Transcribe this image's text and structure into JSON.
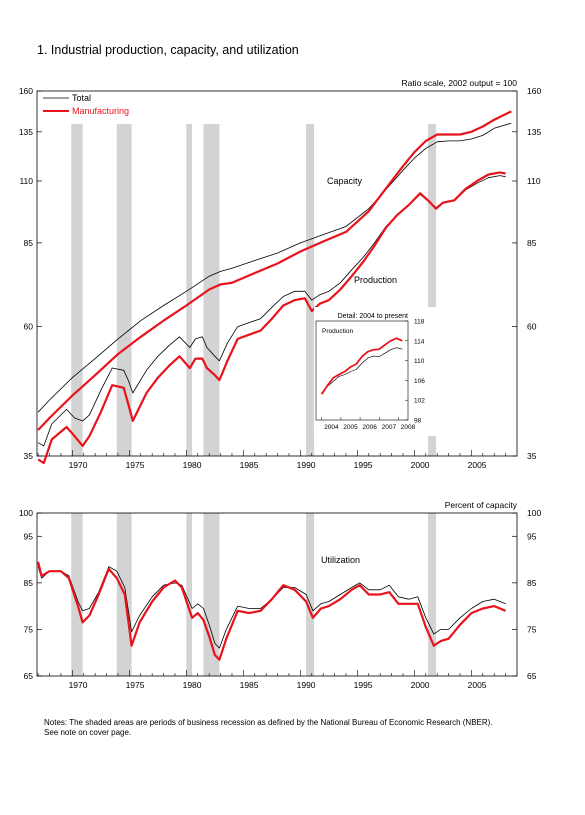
{
  "page": {
    "title": "1.  Industrial production, capacity, and utilization",
    "notes_line1": "Notes: The shaded areas are periods of business recession as defined by the National Bureau of Economic Research (NBER).",
    "notes_line2": "See note on cover page."
  },
  "colors": {
    "total": "#000000",
    "manufacturing": "#e8131b",
    "recession": "#d3d3d3"
  },
  "chart_data": [
    {
      "type": "line",
      "id": "capacity-production",
      "scale_note": "Ratio scale, 2002 output = 100",
      "yscale": "log",
      "ylim": [
        35,
        160
      ],
      "yticks": [
        35,
        60,
        85,
        110,
        135,
        160
      ],
      "xlim": [
        1966.9,
        2009.0
      ],
      "xticks": [
        1970,
        1975,
        1980,
        1985,
        1990,
        1995,
        2000,
        2005
      ],
      "grid": false,
      "legend_position": "top-left",
      "annotations": [
        "Capacity",
        "Production"
      ],
      "recessions": [
        [
          1969.9,
          1970.9
        ],
        [
          1973.9,
          1975.2
        ],
        [
          1980.0,
          1980.5
        ],
        [
          1981.5,
          1982.9
        ],
        [
          1990.5,
          1991.2
        ],
        [
          2001.2,
          2001.9
        ]
      ],
      "series": [
        {
          "name": "Total",
          "kind": "capacity",
          "x": [
            1967,
            1968,
            1970,
            1972,
            1974,
            1976,
            1978,
            1980,
            1982,
            1983,
            1984,
            1986,
            1988,
            1990,
            1992,
            1994,
            1996,
            1998,
            1999,
            2000,
            2001,
            2002,
            2003,
            2004,
            2005,
            2006,
            2007,
            2008.5
          ],
          "y": [
            42,
            44.2,
            48.5,
            52.5,
            57,
            61.5,
            65.5,
            69.5,
            74,
            75.5,
            76.5,
            79,
            81.5,
            85,
            88,
            91,
            98,
            109,
            115,
            121,
            126,
            129.5,
            130,
            130,
            131,
            133,
            137,
            140
          ]
        },
        {
          "name": "Manufacturing",
          "kind": "capacity",
          "x": [
            1967,
            1968,
            1970,
            1972,
            1974,
            1976,
            1978,
            1980,
            1982,
            1983,
            1984,
            1986,
            1988,
            1990,
            1992,
            1994,
            1996,
            1998,
            1999,
            2000,
            2001,
            2002,
            2003,
            2004,
            2005,
            2006,
            2007,
            2008.5
          ],
          "y": [
            39,
            41,
            45,
            49,
            53.5,
            57.5,
            61.5,
            65.5,
            70,
            71.5,
            72,
            75,
            78,
            82,
            85.5,
            89,
            97,
            110,
            117,
            124,
            130,
            133.5,
            133.5,
            133.5,
            135,
            138,
            142,
            147
          ]
        },
        {
          "name": "Total",
          "kind": "production",
          "x": [
            1967,
            1967.5,
            1968.2,
            1969.5,
            1970.2,
            1970.9,
            1971.5,
            1972.5,
            1973.5,
            1974.5,
            1974.9,
            1975.3,
            1976.5,
            1977.5,
            1978.5,
            1979.4,
            1980.3,
            1980.8,
            1981.4,
            1981.8,
            1982.5,
            1982.9,
            1983.6,
            1984.5,
            1985.5,
            1986.5,
            1987.5,
            1988.5,
            1989.5,
            1990.4,
            1991.0,
            1991.7,
            1992.5,
            1993.5,
            1994.5,
            1995.5,
            1996.5,
            1997.5,
            1998.5,
            1999.5,
            2000.5,
            2001.3,
            2001.9,
            2002.5,
            2003.5,
            2004.5,
            2005.5,
            2006.5,
            2007.5,
            2008.0
          ],
          "y": [
            37,
            36.5,
            40,
            42.5,
            41,
            40.5,
            41.5,
            46,
            50.5,
            50,
            48,
            45.5,
            50,
            53,
            55.5,
            57.5,
            55,
            57,
            57.5,
            55,
            53,
            52,
            56,
            60,
            61,
            62,
            65,
            68,
            69.5,
            69.5,
            67,
            68.5,
            69.5,
            72,
            76,
            80,
            85,
            91,
            95.5,
            99.5,
            104,
            101,
            98.5,
            100.5,
            101.5,
            106,
            109,
            111.5,
            112.5,
            112
          ]
        },
        {
          "name": "Manufacturing",
          "kind": "production",
          "x": [
            1967,
            1967.5,
            1968.2,
            1969.5,
            1970.2,
            1970.9,
            1971.5,
            1972.5,
            1973.5,
            1974.5,
            1974.9,
            1975.3,
            1976.5,
            1977.5,
            1978.5,
            1979.4,
            1980.3,
            1980.8,
            1981.4,
            1981.8,
            1982.5,
            1982.9,
            1983.6,
            1984.5,
            1985.5,
            1986.5,
            1987.5,
            1988.5,
            1989.5,
            1990.4,
            1991.0,
            1991.7,
            1992.5,
            1993.5,
            1994.5,
            1995.5,
            1996.5,
            1997.5,
            1998.5,
            1999.5,
            2000.5,
            2001.3,
            2001.9,
            2002.5,
            2003.5,
            2004.5,
            2005.5,
            2006.5,
            2007.5,
            2008.0
          ],
          "y": [
            34.5,
            34,
            37.5,
            39.5,
            38,
            36.5,
            38,
            42,
            47,
            46.5,
            43.5,
            40.5,
            45.5,
            48.5,
            51,
            53,
            50.5,
            52.5,
            52.5,
            50.5,
            49,
            48,
            52,
            57,
            58,
            59,
            62,
            65.5,
            67,
            67.5,
            64,
            66,
            67,
            70,
            74,
            78.5,
            84,
            90.5,
            95.5,
            99.5,
            104.5,
            101,
            98,
            100.5,
            101.5,
            106.5,
            110,
            113,
            114,
            113.5
          ]
        }
      ]
    },
    {
      "type": "line",
      "id": "detail-inset",
      "title": "Detail: 2004 to present",
      "label": "Production",
      "ylim": [
        98,
        118
      ],
      "yticks": [
        98,
        102,
        106,
        110,
        114,
        118
      ],
      "xticks": [
        2004,
        2005,
        2006,
        2007,
        2008
      ],
      "xlim": [
        2003.7,
        2008.5
      ],
      "series": [
        {
          "name": "Total",
          "x": [
            2004.0,
            2004.3,
            2004.6,
            2004.9,
            2005.2,
            2005.5,
            2005.8,
            2006.1,
            2006.4,
            2006.7,
            2007.0,
            2007.3,
            2007.6,
            2007.9,
            2008.2
          ],
          "y": [
            103.5,
            104.8,
            105.8,
            106.8,
            107.2,
            107.8,
            108.2,
            109.5,
            110.5,
            110.9,
            110.8,
            111.5,
            112.2,
            112.6,
            112.3
          ]
        },
        {
          "name": "Manufacturing",
          "x": [
            2004.0,
            2004.3,
            2004.6,
            2004.9,
            2005.2,
            2005.5,
            2005.8,
            2006.1,
            2006.4,
            2006.7,
            2007.0,
            2007.3,
            2007.6,
            2007.9,
            2008.2
          ],
          "y": [
            103.2,
            105.0,
            106.5,
            107.2,
            107.8,
            108.7,
            109.3,
            110.8,
            111.8,
            112.2,
            112.3,
            113.2,
            114.0,
            114.5,
            114.0
          ]
        }
      ]
    },
    {
      "type": "line",
      "id": "utilization",
      "scale_note": "Percent of capacity",
      "annotation": "Utilization",
      "ylim": [
        65,
        100
      ],
      "yticks": [
        65,
        75,
        85,
        95,
        100
      ],
      "xlim": [
        1966.9,
        2009.0
      ],
      "xticks": [
        1970,
        1975,
        1980,
        1985,
        1990,
        1995,
        2000,
        2005
      ],
      "recessions": [
        [
          1969.9,
          1970.9
        ],
        [
          1973.9,
          1975.2
        ],
        [
          1980.0,
          1980.5
        ],
        [
          1981.5,
          1982.9
        ],
        [
          1990.5,
          1991.2
        ],
        [
          2001.2,
          2001.9
        ]
      ],
      "series": [
        {
          "name": "Total",
          "x": [
            1967,
            1967.3,
            1968,
            1969,
            1969.7,
            1970.5,
            1970.9,
            1971.5,
            1972.3,
            1973.2,
            1973.9,
            1974.6,
            1975.2,
            1975.9,
            1977,
            1978,
            1979,
            1979.6,
            1980.5,
            1981.0,
            1981.5,
            1982.0,
            1982.5,
            1982.9,
            1983.5,
            1984.5,
            1985.5,
            1986.5,
            1987.5,
            1988.5,
            1989.5,
            1990.5,
            1991.1,
            1991.8,
            1992.5,
            1993.5,
            1994.5,
            1995.2,
            1996,
            1997,
            1997.8,
            1998.6,
            1999.5,
            2000.3,
            2001.0,
            2001.7,
            2002.3,
            2003,
            2004,
            2005,
            2006,
            2007,
            2008.0
          ],
          "y": [
            88.5,
            86,
            87.5,
            87.5,
            86.5,
            81,
            79,
            79.5,
            83,
            88.5,
            87.5,
            84,
            74.5,
            78,
            82,
            84.5,
            85,
            84.5,
            79.5,
            80.5,
            79.5,
            76,
            72,
            71,
            75,
            80,
            79.5,
            79.5,
            81.5,
            84,
            84,
            82.5,
            79,
            80.5,
            81,
            82.5,
            84,
            85,
            83.5,
            83.5,
            84.5,
            82,
            81.5,
            82,
            77.5,
            74,
            75,
            75,
            77.5,
            79.5,
            81,
            81.5,
            80.5
          ]
        },
        {
          "name": "Manufacturing",
          "x": [
            1967,
            1967.3,
            1968,
            1969,
            1969.7,
            1970.5,
            1970.9,
            1971.5,
            1972.3,
            1973.2,
            1973.9,
            1974.6,
            1975.2,
            1975.9,
            1977,
            1978,
            1979,
            1979.6,
            1980.5,
            1981.0,
            1981.5,
            1982.0,
            1982.5,
            1982.9,
            1983.5,
            1984.5,
            1985.5,
            1986.5,
            1987.5,
            1988.5,
            1989.5,
            1990.5,
            1991.1,
            1991.8,
            1992.5,
            1993.5,
            1994.5,
            1995.2,
            1996,
            1997,
            1997.8,
            1998.6,
            1999.5,
            2000.3,
            2001.0,
            2001.7,
            2002.3,
            2003,
            2004,
            2005,
            2006,
            2007,
            2008.0
          ],
          "y": [
            89.5,
            86.5,
            87.5,
            87.5,
            86,
            80,
            76.5,
            78,
            82.5,
            88,
            86,
            82.5,
            71.5,
            76.5,
            81,
            84,
            85.5,
            84,
            77.5,
            78.5,
            77,
            73.5,
            69.5,
            68.5,
            73,
            79,
            78.5,
            79,
            81.5,
            84.5,
            83.5,
            81,
            77.5,
            79.5,
            80,
            81.5,
            83.5,
            84.5,
            82.5,
            82.5,
            83,
            80.5,
            80.5,
            80.5,
            75.5,
            71.5,
            72.5,
            73,
            76,
            78.5,
            79.5,
            80,
            79
          ]
        }
      ]
    }
  ]
}
